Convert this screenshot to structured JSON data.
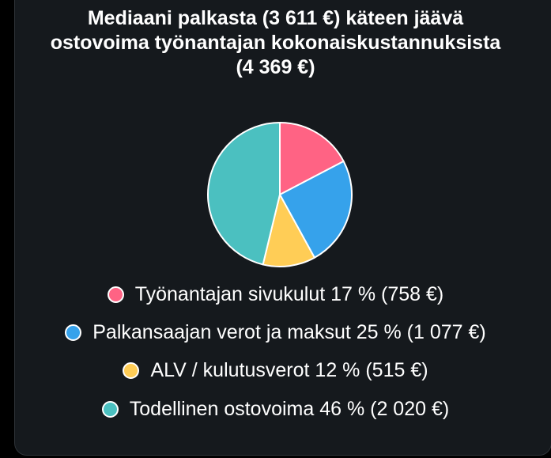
{
  "chart_data": {
    "type": "pie",
    "title_lines": [
      "Mediaani palkasta (3 611 €) käteen jäävä",
      "ostovoima työnantajan kokonaiskustannuksista",
      "(4 369 €)"
    ],
    "slices": [
      {
        "label": "Työnantajan sivukulut 17 % (758 €)",
        "value": 758,
        "color": "#ff6384"
      },
      {
        "label": "Palkansaajan verot ja maksut 25 % (1 077 €)",
        "value": 1077,
        "color": "#36a2eb"
      },
      {
        "label": "ALV / kulutusverot 12 % (515 €)",
        "value": 515,
        "color": "#ffcd56"
      },
      {
        "label": "Todellinen ostovoima 46 % (2 020 €)",
        "value": 2020,
        "color": "#4bc0c0"
      }
    ],
    "legend_position": "bottom"
  }
}
